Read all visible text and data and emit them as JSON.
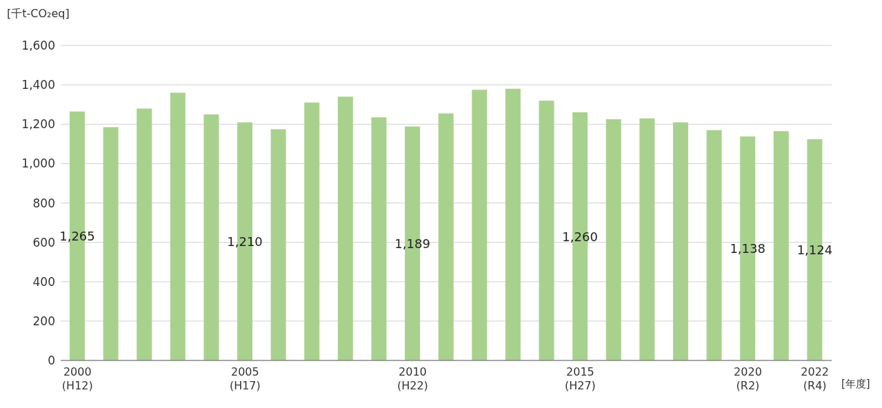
{
  "chart_data": {
    "type": "bar",
    "ylabel": "[千t-CO₂eq]",
    "xlabel": "[年度]",
    "categories": [
      "2000\n(H12)",
      null,
      null,
      null,
      null,
      "2005\n(H17)",
      null,
      null,
      null,
      null,
      "2010\n(H22)",
      null,
      null,
      null,
      null,
      "2015\n(H27)",
      null,
      null,
      null,
      null,
      "2020\n(R2)",
      null,
      "2022\n(R4)"
    ],
    "values": [
      1265,
      1185,
      1280,
      1360,
      1250,
      1210,
      1175,
      1310,
      1340,
      1235,
      1189,
      1255,
      1375,
      1380,
      1320,
      1260,
      1225,
      1230,
      1210,
      1170,
      1138,
      1165,
      1124
    ],
    "value_labels": [
      "1,265",
      null,
      null,
      null,
      null,
      "1,210",
      null,
      null,
      null,
      null,
      "1,189",
      null,
      null,
      null,
      null,
      "1,260",
      null,
      null,
      null,
      null,
      "1,138",
      null,
      "1,124"
    ],
    "color": "#a9d18e",
    "ylim": [
      0,
      1600
    ],
    "yticks": [
      0,
      200,
      400,
      600,
      800,
      {
        "value": 1000,
        "label": "1,000"
      },
      {
        "value": 1200,
        "label": "1,200"
      },
      {
        "value": 1400,
        "label": "1,400"
      },
      {
        "value": 1600,
        "label": "1,600"
      }
    ],
    "grid": "y"
  }
}
